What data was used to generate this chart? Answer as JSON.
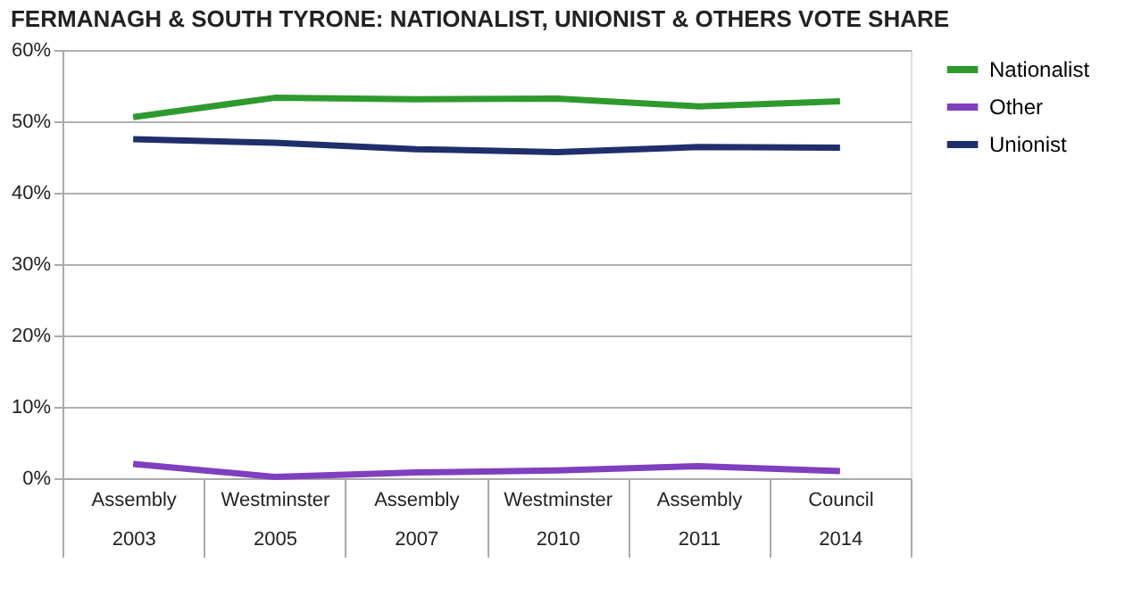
{
  "chart_data": {
    "type": "line",
    "title": "FERMANAGH & SOUTH TYRONE: NATIONALIST, UNIONIST & OTHERS VOTE SHARE",
    "categories": [
      "Assembly 2003",
      "Westminster 2005",
      "Assembly 2007",
      "Westminster 2010",
      "Assembly 2011",
      "Council 2014"
    ],
    "series": [
      {
        "name": "Nationalist",
        "color": "#2e9a2e",
        "values": [
          50.6,
          53.3,
          53.1,
          53.2,
          52.1,
          52.8
        ]
      },
      {
        "name": "Other",
        "color": "#7f3fbf",
        "values": [
          2.0,
          0.2,
          0.8,
          1.1,
          1.7,
          1.0
        ]
      },
      {
        "name": "Unionist",
        "color": "#1f2f6b",
        "values": [
          47.5,
          47.0,
          46.1,
          45.7,
          46.4,
          46.3
        ]
      }
    ],
    "ylim": [
      0,
      60
    ],
    "yticks": [
      {
        "value": 0,
        "label": "0%"
      },
      {
        "value": 10,
        "label": "10%"
      },
      {
        "value": 20,
        "label": "20%"
      },
      {
        "value": 30,
        "label": "30%"
      },
      {
        "value": 40,
        "label": "40%"
      },
      {
        "value": 50,
        "label": "50%"
      },
      {
        "value": 60,
        "label": "60%"
      }
    ],
    "grid": "y",
    "legend": "right",
    "marker": "none",
    "line_style": "solid"
  }
}
